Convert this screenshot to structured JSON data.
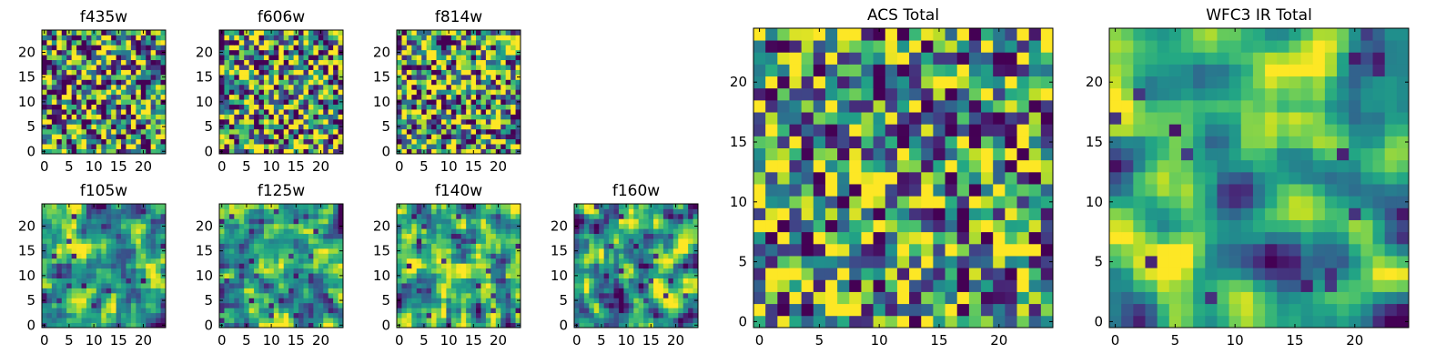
{
  "chart_data": [
    {
      "type": "heatmap",
      "title": "f435w",
      "grid_size": 25,
      "xlim": [
        -0.5,
        24.5
      ],
      "ylim": [
        -0.5,
        24.5
      ],
      "xticks": [
        0,
        5,
        10,
        15,
        20
      ],
      "yticks": [
        0,
        5,
        10,
        15,
        20
      ],
      "colormap": "viridis",
      "seed": 11,
      "smooth": 0,
      "noise": 0.45
    },
    {
      "type": "heatmap",
      "title": "f606w",
      "grid_size": 25,
      "xlim": [
        -0.5,
        24.5
      ],
      "ylim": [
        -0.5,
        24.5
      ],
      "xticks": [
        0,
        5,
        10,
        15,
        20
      ],
      "yticks": [
        0,
        5,
        10,
        15,
        20
      ],
      "colormap": "viridis",
      "seed": 23,
      "smooth": 0,
      "noise": 0.45
    },
    {
      "type": "heatmap",
      "title": "f814w",
      "grid_size": 25,
      "xlim": [
        -0.5,
        24.5
      ],
      "ylim": [
        -0.5,
        24.5
      ],
      "xticks": [
        0,
        5,
        10,
        15,
        20
      ],
      "yticks": [
        0,
        5,
        10,
        15,
        20
      ],
      "colormap": "viridis",
      "seed": 37,
      "smooth": 0,
      "noise": 0.45
    },
    {
      "type": "heatmap",
      "title": "f105w",
      "grid_size": 25,
      "xlim": [
        -0.5,
        24.5
      ],
      "ylim": [
        -0.5,
        24.5
      ],
      "xticks": [
        0,
        5,
        10,
        15,
        20
      ],
      "yticks": [
        0,
        5,
        10,
        15,
        20
      ],
      "colormap": "viridis",
      "seed": 41,
      "smooth": 1,
      "noise": 0.4
    },
    {
      "type": "heatmap",
      "title": "f125w",
      "grid_size": 25,
      "xlim": [
        -0.5,
        24.5
      ],
      "ylim": [
        -0.5,
        24.5
      ],
      "xticks": [
        0,
        5,
        10,
        15,
        20
      ],
      "yticks": [
        0,
        5,
        10,
        15,
        20
      ],
      "colormap": "viridis",
      "seed": 53,
      "smooth": 1,
      "noise": 0.4
    },
    {
      "type": "heatmap",
      "title": "f140w",
      "grid_size": 25,
      "xlim": [
        -0.5,
        24.5
      ],
      "ylim": [
        -0.5,
        24.5
      ],
      "xticks": [
        0,
        5,
        10,
        15,
        20
      ],
      "yticks": [
        0,
        5,
        10,
        15,
        20
      ],
      "colormap": "viridis",
      "seed": 67,
      "smooth": 1,
      "noise": 0.4
    },
    {
      "type": "heatmap",
      "title": "f160w",
      "grid_size": 25,
      "xlim": [
        -0.5,
        24.5
      ],
      "ylim": [
        -0.5,
        24.5
      ],
      "xticks": [
        0,
        5,
        10,
        15,
        20
      ],
      "yticks": [
        0,
        5,
        10,
        15,
        20
      ],
      "colormap": "viridis",
      "seed": 79,
      "smooth": 1,
      "noise": 0.4
    },
    {
      "type": "heatmap",
      "title": "ACS Total",
      "grid_size": 25,
      "xlim": [
        -0.5,
        24.5
      ],
      "ylim": [
        -0.5,
        24.5
      ],
      "xticks": [
        0,
        5,
        10,
        15,
        20
      ],
      "yticks": [
        0,
        5,
        10,
        15,
        20
      ],
      "colormap": "viridis",
      "seed": 97,
      "smooth": 0,
      "noise": 0.3
    },
    {
      "type": "heatmap",
      "title": "WFC3 IR Total",
      "grid_size": 25,
      "xlim": [
        -0.5,
        24.5
      ],
      "ylim": [
        -0.5,
        24.5
      ],
      "xticks": [
        0,
        5,
        10,
        15,
        20
      ],
      "yticks": [
        0,
        5,
        10,
        15,
        20
      ],
      "colormap": "viridis",
      "seed": 131,
      "smooth": 2,
      "noise": 0.25
    }
  ]
}
